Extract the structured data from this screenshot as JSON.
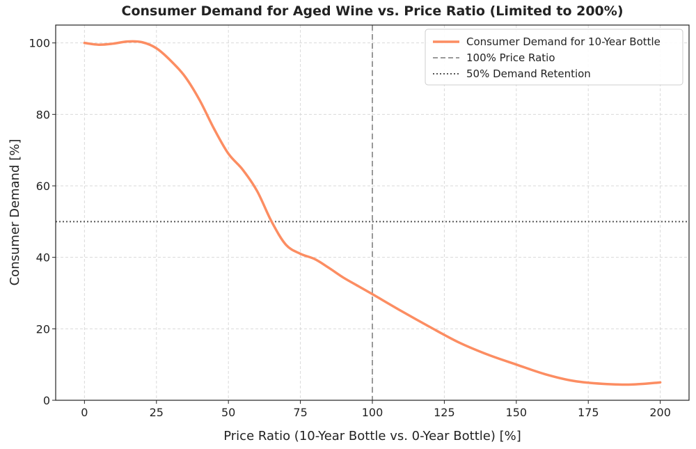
{
  "chart_data": {
    "type": "line",
    "title": "Consumer Demand for Aged Wine vs. Price Ratio (Limited to 200%)",
    "xlabel": "Price Ratio (10-Year Bottle vs. 0-Year Bottle) [%]",
    "ylabel": "Consumer Demand [%]",
    "xlim": [
      -10,
      210
    ],
    "ylim": [
      0,
      105
    ],
    "xticks": [
      "0",
      "25",
      "50",
      "75",
      "100",
      "125",
      "150",
      "175",
      "200"
    ],
    "yticks": [
      "0",
      "20",
      "40",
      "60",
      "80",
      "100"
    ],
    "grid": true,
    "legend_position": "top-right",
    "series": [
      {
        "name": "Consumer Demand for 10-Year Bottle",
        "color": "#fc8d62",
        "x": [
          0,
          5,
          10,
          15,
          20,
          25,
          30,
          35,
          40,
          45,
          50,
          55,
          60,
          65,
          70,
          75,
          80,
          85,
          90,
          95,
          100,
          110,
          120,
          130,
          140,
          150,
          160,
          170,
          180,
          190,
          200
        ],
        "y": [
          100,
          99.5,
          99.8,
          100.4,
          100.2,
          98.5,
          95,
          90.5,
          84,
          76,
          69,
          64.5,
          58.5,
          50,
          43.5,
          41,
          39.5,
          37,
          34.3,
          32,
          29.7,
          25,
          20.5,
          16.2,
          12.8,
          10,
          7.3,
          5.4,
          4.6,
          4.4,
          5
        ]
      }
    ],
    "reference_lines": [
      {
        "name": "100% Price Ratio",
        "orientation": "vertical",
        "value": 100,
        "style": "dashed",
        "color": "#999999"
      },
      {
        "name": "50% Demand Retention",
        "orientation": "horizontal",
        "value": 50,
        "style": "dotted",
        "color": "#555555"
      }
    ]
  }
}
